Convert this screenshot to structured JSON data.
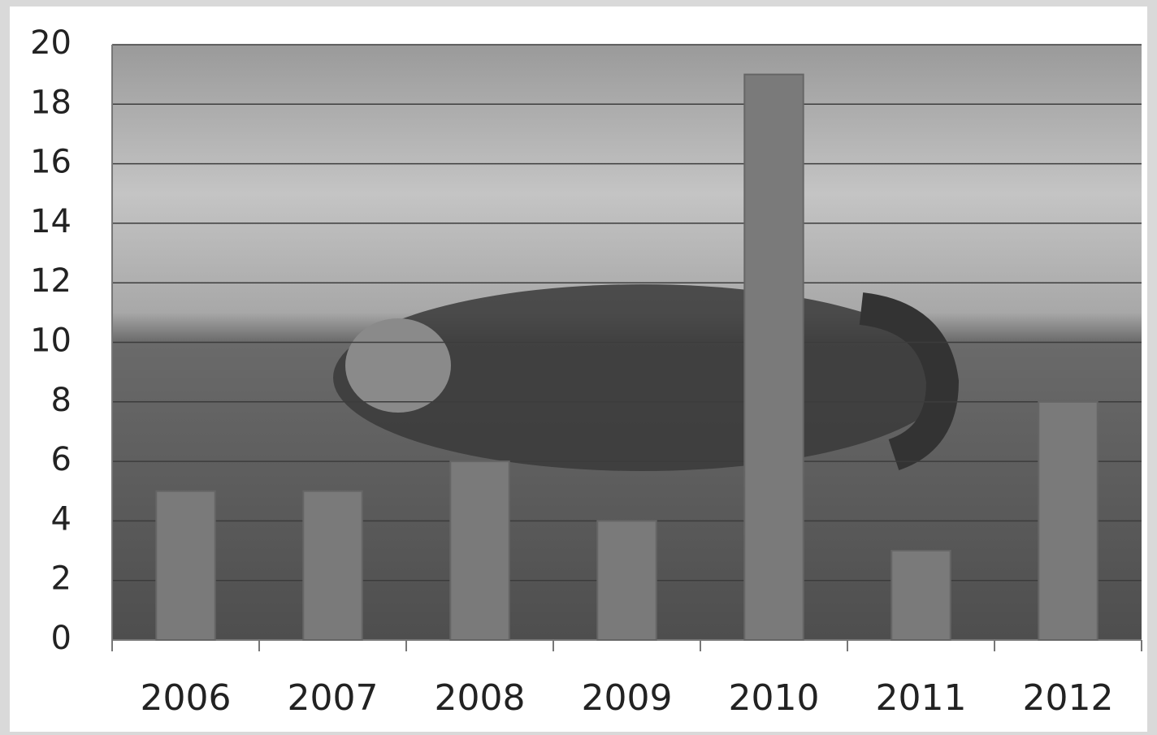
{
  "chart_data": {
    "type": "bar",
    "categories": [
      "2006",
      "2007",
      "2008",
      "2009",
      "2010",
      "2011",
      "2012"
    ],
    "values": [
      5,
      5,
      6,
      4,
      19,
      3,
      8
    ],
    "color": "#7a7a7a",
    "ylim": [
      0,
      20
    ],
    "yticks": [
      0,
      2,
      4,
      6,
      8,
      10,
      12,
      14,
      16,
      18,
      20
    ],
    "grid": true
  }
}
